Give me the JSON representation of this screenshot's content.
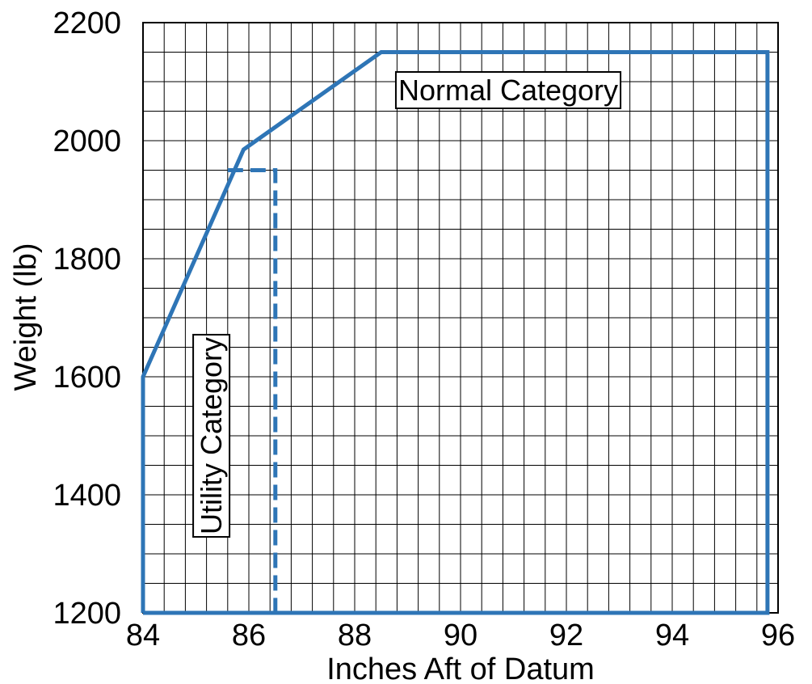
{
  "chart_data": {
    "type": "line",
    "xlabel": "Inches Aft of Datum",
    "ylabel": "Weight (lb)",
    "xlim": [
      84,
      96
    ],
    "ylim": [
      1200,
      2200
    ],
    "x_ticks": [
      "84",
      "86",
      "88",
      "90",
      "92",
      "94",
      "96"
    ],
    "y_ticks": [
      "1200",
      "1400",
      "1600",
      "1800",
      "2000",
      "2200"
    ],
    "minor_grid_x": 0.4,
    "minor_grid_y": 50,
    "grid": true,
    "line_color": "#2e75b6",
    "series": [
      {
        "name": "Normal Category",
        "style": "solid",
        "points": [
          [
            84,
            1200
          ],
          [
            84,
            1600
          ],
          [
            85.9,
            1985
          ],
          [
            88.5,
            2150
          ],
          [
            95.8,
            2150
          ],
          [
            95.8,
            1200
          ],
          [
            84,
            1200
          ]
        ]
      },
      {
        "name": "Utility Category",
        "style": "dashed",
        "points": [
          [
            85.6,
            1950
          ],
          [
            86.5,
            1950
          ],
          [
            86.5,
            1200
          ]
        ]
      }
    ],
    "annotations": [
      {
        "text": "Normal Category",
        "x": 90.9,
        "y": 2085,
        "rotation": 0
      },
      {
        "text": "Utility Category",
        "x": 85.3,
        "y": 1500,
        "rotation": -90
      }
    ]
  }
}
